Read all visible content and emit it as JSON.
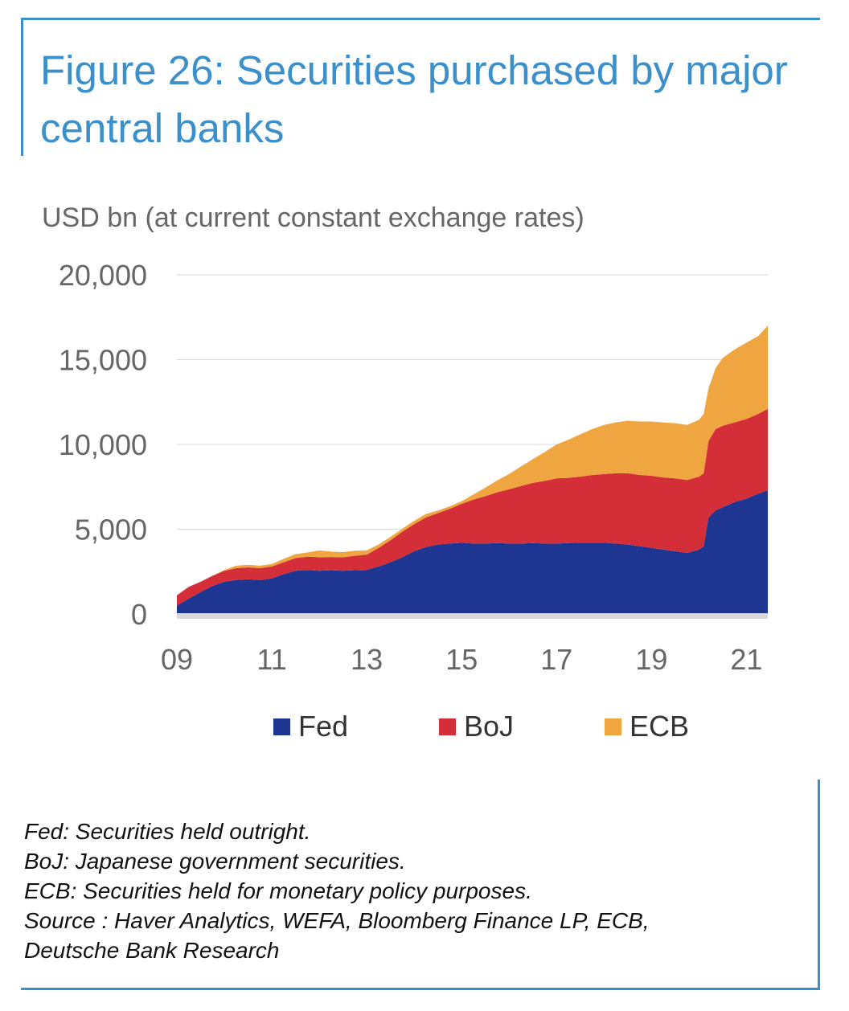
{
  "header": {
    "title": "Figure 26: Securities purchased by major central banks",
    "unit_label": "USD bn (at current constant exchange rates)"
  },
  "chart_data": {
    "type": "area",
    "stacked": true,
    "x_tick_labels": [
      "09",
      "11",
      "13",
      "15",
      "17",
      "19",
      "21"
    ],
    "x_tick_years": [
      2009,
      2011,
      2013,
      2015,
      2017,
      2019,
      2021
    ],
    "xlim": [
      2009.0,
      2021.45
    ],
    "ylim": [
      0,
      20000
    ],
    "y_ticks": [
      0,
      5000,
      10000,
      15000,
      20000
    ],
    "y_tick_labels": [
      "0",
      "5,000",
      "10,000",
      "15,000",
      "20,000"
    ],
    "grid": true,
    "legend_position": "bottom",
    "x": [
      2009.0,
      2009.25,
      2009.5,
      2009.75,
      2010.0,
      2010.25,
      2010.5,
      2010.75,
      2011.0,
      2011.25,
      2011.5,
      2011.75,
      2012.0,
      2012.25,
      2012.5,
      2012.75,
      2013.0,
      2013.25,
      2013.5,
      2013.75,
      2014.0,
      2014.25,
      2014.5,
      2014.75,
      2015.0,
      2015.25,
      2015.5,
      2015.75,
      2016.0,
      2016.25,
      2016.5,
      2016.75,
      2017.0,
      2017.25,
      2017.5,
      2017.75,
      2018.0,
      2018.25,
      2018.5,
      2018.75,
      2019.0,
      2019.25,
      2019.5,
      2019.75,
      2020.0,
      2020.1,
      2020.2,
      2020.35,
      2020.5,
      2020.75,
      2021.0,
      2021.25,
      2021.45
    ],
    "series": [
      {
        "name": "Fed",
        "color": "#1e3591",
        "values": [
          500,
          900,
          1300,
          1650,
          1900,
          2000,
          2050,
          2000,
          2100,
          2350,
          2550,
          2600,
          2550,
          2580,
          2550,
          2580,
          2600,
          2800,
          3050,
          3350,
          3700,
          3950,
          4100,
          4150,
          4200,
          4150,
          4150,
          4180,
          4150,
          4150,
          4180,
          4150,
          4150,
          4180,
          4200,
          4200,
          4200,
          4150,
          4100,
          4000,
          3900,
          3800,
          3700,
          3600,
          3800,
          4000,
          5700,
          6100,
          6300,
          6600,
          6800,
          7100,
          7300
        ]
      },
      {
        "name": "BoJ",
        "color": "#d42f38",
        "values": [
          600,
          700,
          600,
          600,
          650,
          700,
          700,
          700,
          700,
          700,
          750,
          780,
          800,
          780,
          800,
          850,
          900,
          1100,
          1300,
          1500,
          1600,
          1750,
          1850,
          2050,
          2300,
          2600,
          2800,
          3000,
          3200,
          3400,
          3550,
          3700,
          3850,
          3850,
          3900,
          4000,
          4050,
          4150,
          4200,
          4200,
          4250,
          4250,
          4300,
          4300,
          4300,
          4300,
          4500,
          4800,
          4800,
          4700,
          4700,
          4700,
          4800
        ]
      },
      {
        "name": "ECB",
        "color": "#f0a640",
        "values": [
          0,
          0,
          0,
          0,
          50,
          150,
          150,
          150,
          150,
          200,
          230,
          250,
          400,
          320,
          300,
          300,
          250,
          200,
          200,
          180,
          200,
          200,
          150,
          150,
          150,
          300,
          500,
          700,
          900,
          1150,
          1400,
          1700,
          2000,
          2250,
          2500,
          2700,
          2900,
          3000,
          3100,
          3150,
          3200,
          3250,
          3250,
          3250,
          3350,
          3500,
          3100,
          3600,
          4000,
          4300,
          4500,
          4600,
          4900
        ]
      }
    ]
  },
  "notes": [
    "Fed: Securities held outright.",
    "BoJ: Japanese government securities.",
    "ECB: Securities held for monetary policy purposes.",
    "Source : Haver Analytics, WEFA, Bloomberg Finance LP, ECB,",
    "Deutsche Bank Research"
  ]
}
